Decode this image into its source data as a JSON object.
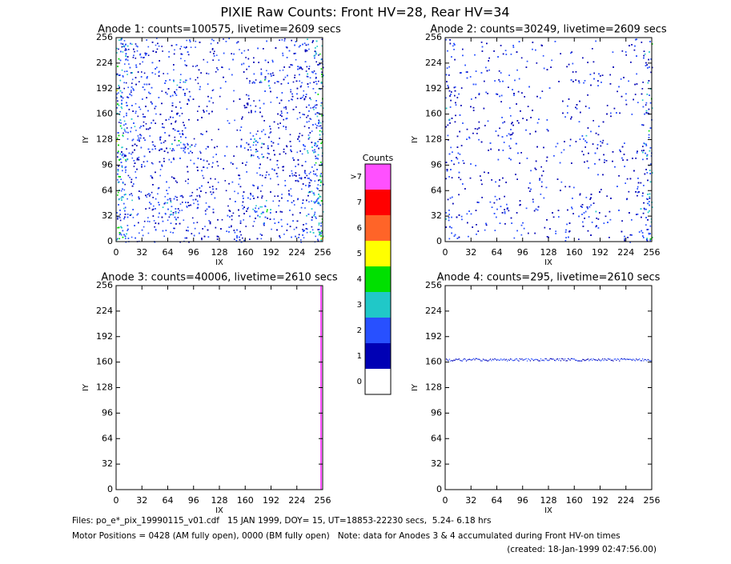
{
  "title": "PIXIE Raw Counts:  Front HV=28, Rear HV=34",
  "chart_data": [
    {
      "type": "heatmap",
      "title": "Anode 1: counts=100575, livetime=2609 secs",
      "xlabel": "IX",
      "ylabel": "IY",
      "xlim": [
        0,
        256
      ],
      "ylim": [
        0,
        256
      ],
      "xticks": [
        0,
        32,
        64,
        96,
        128,
        160,
        192,
        224,
        256
      ],
      "yticks": [
        0,
        32,
        64,
        96,
        128,
        160,
        192,
        224,
        256
      ]
    },
    {
      "type": "heatmap",
      "title": "Anode 2: counts=30249, livetime=2609 secs",
      "xlabel": "IX",
      "ylabel": "IY",
      "xlim": [
        0,
        256
      ],
      "ylim": [
        0,
        256
      ],
      "xticks": [
        0,
        32,
        64,
        96,
        128,
        160,
        192,
        224,
        256
      ],
      "yticks": [
        0,
        32,
        64,
        96,
        128,
        160,
        192,
        224,
        256
      ]
    },
    {
      "type": "heatmap",
      "title": "Anode 3: counts=40006, livetime=2610 secs",
      "xlabel": "IX",
      "ylabel": "IY",
      "xlim": [
        0,
        256
      ],
      "ylim": [
        0,
        256
      ],
      "xticks": [
        0,
        32,
        64,
        96,
        128,
        160,
        192,
        224,
        256
      ],
      "yticks": [
        0,
        32,
        64,
        96,
        128,
        160,
        192,
        224,
        256
      ]
    },
    {
      "type": "heatmap",
      "title": "Anode 4: counts=295, livetime=2610 secs",
      "xlabel": "IX",
      "ylabel": "IY",
      "xlim": [
        0,
        256
      ],
      "ylim": [
        0,
        256
      ],
      "xticks": [
        0,
        32,
        64,
        96,
        128,
        160,
        192,
        224,
        256
      ],
      "yticks": [
        0,
        32,
        64,
        96,
        128,
        160,
        192,
        224,
        256
      ]
    }
  ],
  "colorbar": {
    "title": "Counts",
    "labels": [
      "0",
      "1",
      "2",
      "3",
      "4",
      "5",
      "6",
      "7",
      ">7"
    ],
    "colors": [
      "#ffffff",
      "#0000b4",
      "#2850ff",
      "#20c8c8",
      "#00e000",
      "#ffff00",
      "#ff6428",
      "#ff0000",
      "#ff50ff"
    ]
  },
  "footer": [
    "Files: po_e*_pix_19990115_v01.cdf   15 JAN 1999, DOY= 15, UT=18853-22230 secs,  5.24- 6.18 hrs",
    "Motor Positions = 0428 (AM fully open), 0000 (BM fully open)   Note: data for Anodes 3 & 4 accumulated during Front HV-on times",
    "(created: 18-Jan-1999 02:47:56.00)"
  ]
}
